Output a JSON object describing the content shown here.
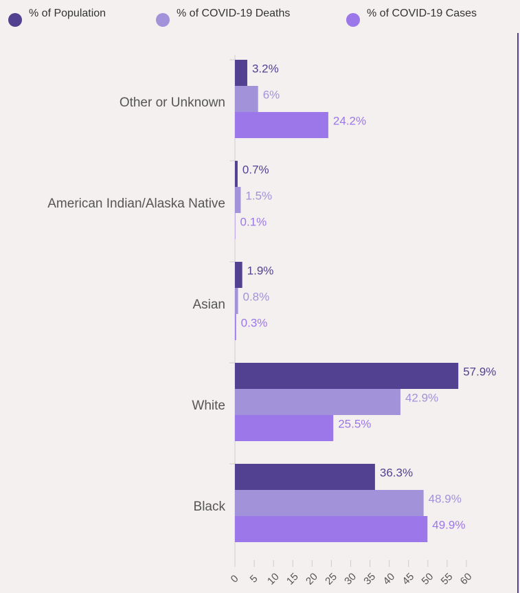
{
  "chart_data": {
    "type": "bar",
    "orientation": "horizontal",
    "categories": [
      "Other or Unknown",
      "American Indian/Alaska Native",
      "Asian",
      "White",
      "Black"
    ],
    "series": [
      {
        "name": "% of Population",
        "color": "#514190",
        "values": [
          3.2,
          0.7,
          1.9,
          57.9,
          36.3
        ],
        "value_labels": [
          "3.2%",
          "0.7%",
          "1.9%",
          "57.9%",
          "36.3%"
        ]
      },
      {
        "name": "% of COVID-19 Deaths",
        "color": "#a192d9",
        "values": [
          6,
          1.5,
          0.8,
          42.9,
          48.9
        ],
        "value_labels": [
          "6%",
          "1.5%",
          "0.8%",
          "42.9%",
          "48.9%"
        ]
      },
      {
        "name": "% of COVID-19 Cases",
        "color": "#9b77ea",
        "values": [
          24.2,
          0.1,
          0.3,
          25.5,
          49.9
        ],
        "value_labels": [
          "24.2%",
          "0.1%",
          "0.3%",
          "25.5%",
          "49.9%"
        ]
      }
    ],
    "xlim": [
      0,
      60
    ],
    "xticks": [
      0,
      5,
      10,
      15,
      20,
      25,
      30,
      35,
      40,
      45,
      50,
      55,
      60
    ],
    "legend": "top",
    "grid": false
  }
}
